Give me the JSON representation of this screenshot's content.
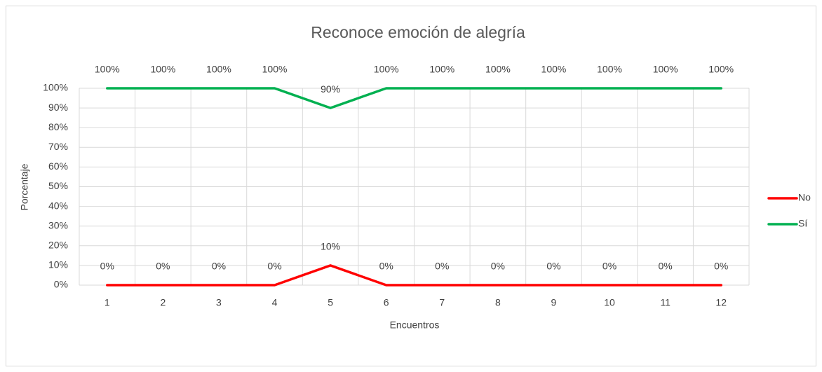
{
  "chart_data": {
    "type": "line",
    "title": "Reconoce emoción de alegría",
    "x_label": "Encuentros",
    "y_label": "Porcentaje",
    "categories": [
      "1",
      "2",
      "3",
      "4",
      "5",
      "6",
      "7",
      "8",
      "9",
      "10",
      "11",
      "12"
    ],
    "series": [
      {
        "name": "No",
        "color": "#ff0000",
        "values": [
          0,
          0,
          0,
          0,
          10,
          0,
          0,
          0,
          0,
          0,
          0,
          0
        ],
        "value_labels": [
          "0%",
          "0%",
          "0%",
          "0%",
          "10%",
          "0%",
          "0%",
          "0%",
          "0%",
          "0%",
          "0%",
          "0%"
        ]
      },
      {
        "name": "Sí",
        "color": "#00b050",
        "values": [
          100,
          100,
          100,
          100,
          90,
          100,
          100,
          100,
          100,
          100,
          100,
          100
        ],
        "value_labels": [
          "100%",
          "100%",
          "100%",
          "100%",
          "90%",
          "100%",
          "100%",
          "100%",
          "100%",
          "100%",
          "100%",
          "100%"
        ]
      }
    ],
    "ylim": [
      0,
      100
    ],
    "yticks": [
      {
        "value": 0,
        "label": "0%"
      },
      {
        "value": 10,
        "label": "10%"
      },
      {
        "value": 20,
        "label": "20%"
      },
      {
        "value": 30,
        "label": "30%"
      },
      {
        "value": 40,
        "label": "40%"
      },
      {
        "value": 50,
        "label": "50%"
      },
      {
        "value": 60,
        "label": "60%"
      },
      {
        "value": 70,
        "label": "70%"
      },
      {
        "value": 80,
        "label": "80%"
      },
      {
        "value": 90,
        "label": "90%"
      },
      {
        "value": 100,
        "label": "100%"
      }
    ],
    "grid": true,
    "legend": "right"
  }
}
